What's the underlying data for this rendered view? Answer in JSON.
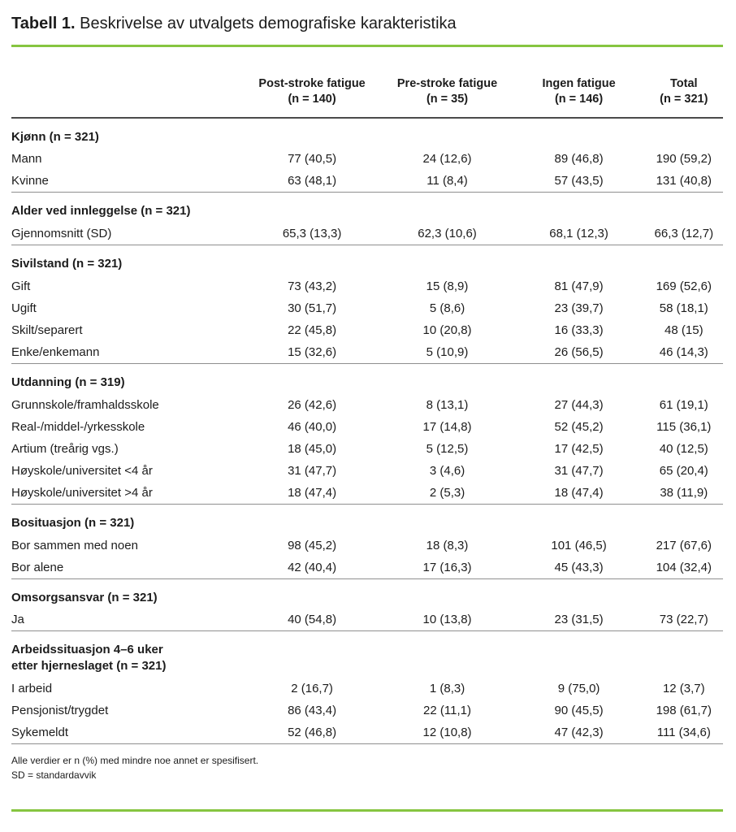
{
  "title": {
    "label": "Tabell 1.",
    "text": "Beskrivelse av utvalgets demografiske karakteristika"
  },
  "table": {
    "columns": [
      {
        "line1": "Post-stroke fatigue",
        "line2": "(n = 140)"
      },
      {
        "line1": "Pre-stroke fatigue",
        "line2": "(n = 35)"
      },
      {
        "line1": "Ingen fatigue",
        "line2": "(n = 146)"
      },
      {
        "line1": "Total",
        "line2": "(n = 321)"
      }
    ],
    "sections": [
      {
        "header_lines": [
          "Kjønn (n = 321)"
        ],
        "rows": [
          {
            "label": "Mann",
            "values": [
              "77 (40,5)",
              "24 (12,6)",
              "89 (46,8)",
              "190 (59,2)"
            ]
          },
          {
            "label": "Kvinne",
            "values": [
              "63 (48,1)",
              "11 (8,4)",
              "57 (43,5)",
              "131 (40,8)"
            ]
          }
        ]
      },
      {
        "header_lines": [
          "Alder ved innleggelse (n = 321)"
        ],
        "rows": [
          {
            "label": "Gjennomsnitt (SD)",
            "values": [
              "65,3 (13,3)",
              "62,3 (10,6)",
              "68,1 (12,3)",
              "66,3 (12,7)"
            ]
          }
        ]
      },
      {
        "header_lines": [
          "Sivilstand (n = 321)"
        ],
        "rows": [
          {
            "label": "Gift",
            "values": [
              "73 (43,2)",
              "15 (8,9)",
              "81 (47,9)",
              "169 (52,6)"
            ]
          },
          {
            "label": "Ugift",
            "values": [
              "30 (51,7)",
              "5 (8,6)",
              "23 (39,7)",
              "58 (18,1)"
            ]
          },
          {
            "label": "Skilt/separert",
            "values": [
              "22 (45,8)",
              "10 (20,8)",
              "16 (33,3)",
              "48 (15)"
            ]
          },
          {
            "label": "Enke/enkemann",
            "values": [
              "15 (32,6)",
              "5 (10,9)",
              "26 (56,5)",
              "46 (14,3)"
            ]
          }
        ]
      },
      {
        "header_lines": [
          "Utdanning (n = 319)"
        ],
        "rows": [
          {
            "label": "Grunnskole/framhaldsskole",
            "values": [
              "26 (42,6)",
              "8 (13,1)",
              "27 (44,3)",
              "61 (19,1)"
            ]
          },
          {
            "label": "Real-/middel-/yrkesskole",
            "values": [
              "46 (40,0)",
              "17 (14,8)",
              "52 (45,2)",
              "115 (36,1)"
            ]
          },
          {
            "label": "Artium (treårig vgs.)",
            "values": [
              "18 (45,0)",
              "5 (12,5)",
              "17 (42,5)",
              "40 (12,5)"
            ]
          },
          {
            "label": "Høyskole/universitet <4 år",
            "values": [
              "31 (47,7)",
              "3 (4,6)",
              "31 (47,7)",
              "65 (20,4)"
            ]
          },
          {
            "label": "Høyskole/universitet >4 år",
            "values": [
              "18 (47,4)",
              "2 (5,3)",
              "18 (47,4)",
              "38 (11,9)"
            ]
          }
        ]
      },
      {
        "header_lines": [
          "Bosituasjon (n = 321)"
        ],
        "rows": [
          {
            "label": "Bor sammen med noen",
            "values": [
              "98 (45,2)",
              "18 (8,3)",
              "101 (46,5)",
              "217 (67,6)"
            ]
          },
          {
            "label": "Bor alene",
            "values": [
              "42 (40,4)",
              "17 (16,3)",
              "45 (43,3)",
              "104 (32,4)"
            ]
          }
        ]
      },
      {
        "header_lines": [
          "Omsorgsansvar (n = 321)"
        ],
        "rows": [
          {
            "label": "Ja",
            "values": [
              "40 (54,8)",
              "10 (13,8)",
              "23 (31,5)",
              "73 (22,7)"
            ]
          }
        ]
      },
      {
        "header_lines": [
          "Arbeidssituasjon 4–6 uker",
          "etter hjerneslaget (n = 321)"
        ],
        "rows": [
          {
            "label": "I arbeid",
            "values": [
              "2 (16,7)",
              "1 (8,3)",
              "9 (75,0)",
              "12 (3,7)"
            ]
          },
          {
            "label": "Pensjonist/trygdet",
            "values": [
              "86 (43,4)",
              "22 (11,1)",
              "90 (45,5)",
              "198 (61,7)"
            ]
          },
          {
            "label": "Sykemeldt",
            "values": [
              "52 (46,8)",
              "12 (10,8)",
              "47 (42,3)",
              "111 (34,6)"
            ]
          }
        ]
      }
    ]
  },
  "footnotes": [
    "Alle verdier er n (%) med mindre noe annet er spesifisert.",
    "SD = standardavvik"
  ],
  "colors": {
    "accent_green": "#86C540",
    "text": "#1c1c1c",
    "header_rule": "#4a4a4a",
    "section_rule": "#8f8f8f"
  }
}
